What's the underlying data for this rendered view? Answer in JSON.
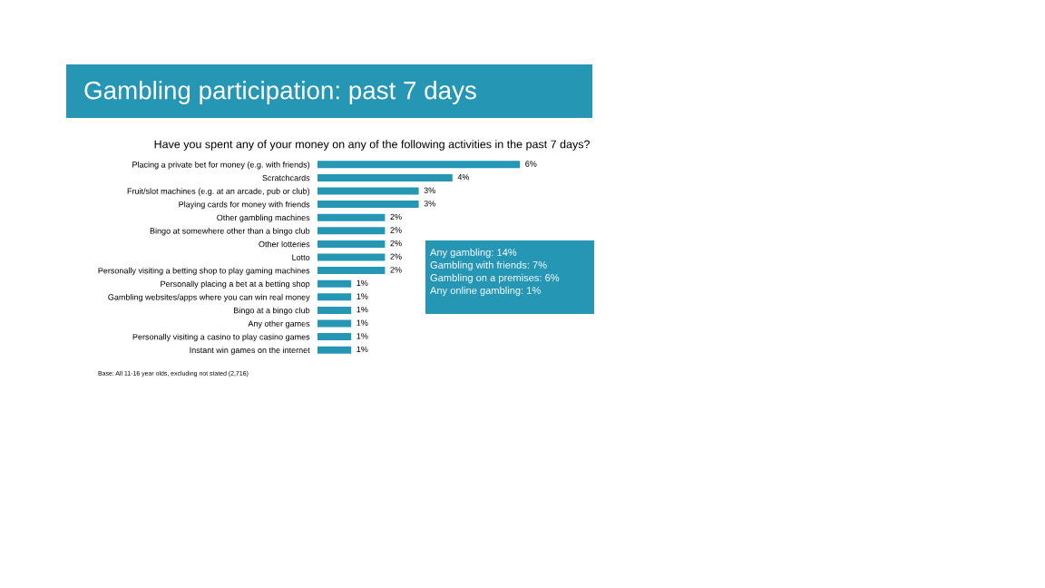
{
  "chart_data": {
    "type": "bar",
    "orientation": "horizontal",
    "title": "Gambling participation: past 7 days",
    "subtitle": "Have you spent any of your money on any of the following activities in the past 7 days?",
    "categories": [
      "Placing a private bet for money (e.g. with friends)",
      "Scratchcards",
      "Fruit/slot machines (e.g. at an arcade, pub or club)",
      "Playing cards for money with friends",
      "Other gambling machines",
      "Bingo at somewhere other than a bingo club",
      "Other lotteries",
      "Lotto",
      "Personally visiting a betting shop to play gaming machines",
      "Personally placing a bet at a betting shop",
      "Gambling websites/apps where you can win real money",
      "Bingo at a bingo club",
      "Any other games",
      "Personally visiting a casino to play casino games",
      "Instant win games on the internet"
    ],
    "values": [
      6,
      4,
      3,
      3,
      2,
      2,
      2,
      2,
      2,
      1,
      1,
      1,
      1,
      1,
      1
    ],
    "value_labels": [
      "6%",
      "4%",
      "3%",
      "3%",
      "2%",
      "2%",
      "2%",
      "2%",
      "2%",
      "1%",
      "1%",
      "1%",
      "1%",
      "1%",
      "1%"
    ],
    "color": "#2596b4",
    "annotations": [
      "Base: All 11-16 year olds, excluding not stated (2,716)",
      "Any gambling: 14%",
      "Gambling with friends: 7%",
      "Gambling on a premises: 6%",
      "Any online gambling: 1%"
    ]
  }
}
